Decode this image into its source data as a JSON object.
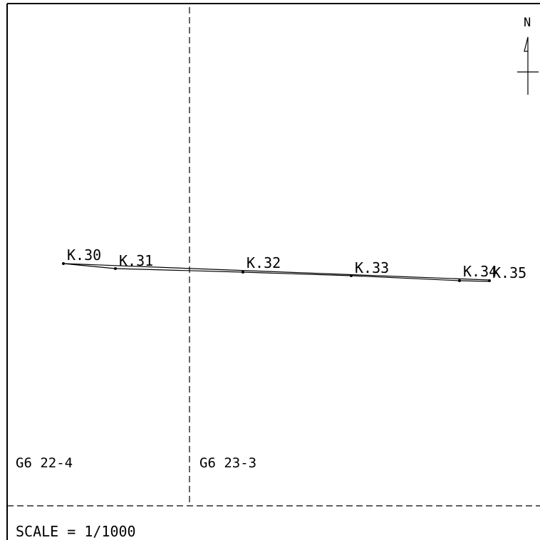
{
  "north_label": "N",
  "scale_text": "SCALE = 1/1000",
  "sheets": [
    {
      "label": "G6 22-4"
    },
    {
      "label": "G6 23-3"
    }
  ],
  "stations": [
    {
      "label": "K.30"
    },
    {
      "label": "K.31"
    },
    {
      "label": "K.32"
    },
    {
      "label": "K.33"
    },
    {
      "label": "K.34"
    },
    {
      "label": "K.35"
    }
  ],
  "colors": {
    "line": "#000000",
    "background": "#ffffff"
  }
}
